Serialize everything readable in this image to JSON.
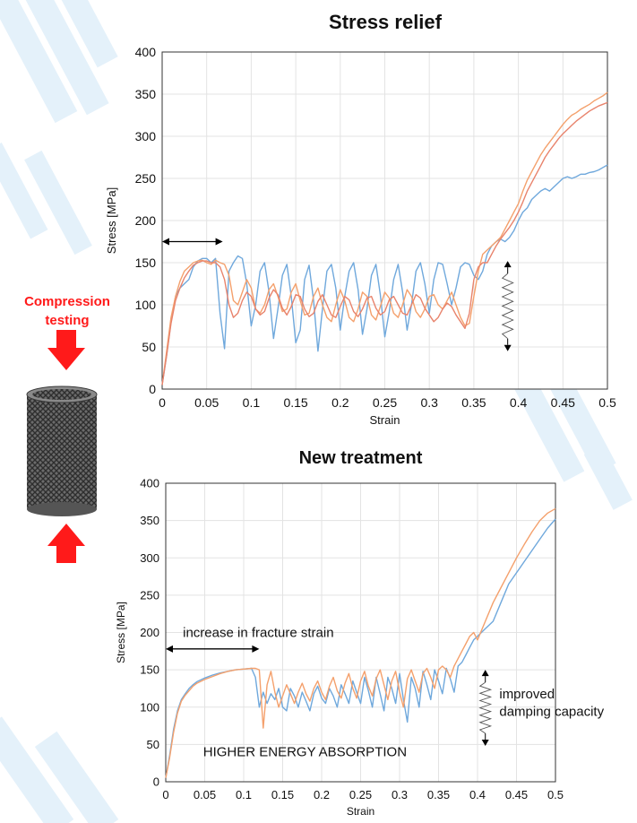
{
  "side_panel": {
    "label_line1": "Compression",
    "label_line2": "testing",
    "arrow_color": "#ff1a1a"
  },
  "chart_data": [
    {
      "type": "line",
      "title": "Stress relief",
      "xlabel": "Strain",
      "ylabel": "Stress [MPa]",
      "xlim": [
        0,
        0.5
      ],
      "ylim": [
        0,
        400
      ],
      "xticks": [
        0,
        0.05,
        0.1,
        0.15,
        0.2,
        0.25,
        0.3,
        0.35,
        0.4,
        0.45,
        0.5
      ],
      "yticks": [
        0,
        50,
        100,
        150,
        200,
        250,
        300,
        350,
        400
      ],
      "grid": true,
      "series": [
        {
          "color": "#6fa8dc",
          "x": [
            0,
            0.005,
            0.01,
            0.015,
            0.02,
            0.025,
            0.03,
            0.035,
            0.04,
            0.045,
            0.05,
            0.055,
            0.06,
            0.065,
            0.07,
            0.075,
            0.08,
            0.085,
            0.09,
            0.095,
            0.1,
            0.105,
            0.11,
            0.115,
            0.12,
            0.125,
            0.13,
            0.135,
            0.14,
            0.145,
            0.15,
            0.155,
            0.16,
            0.165,
            0.17,
            0.175,
            0.18,
            0.185,
            0.19,
            0.195,
            0.2,
            0.205,
            0.21,
            0.215,
            0.22,
            0.225,
            0.23,
            0.235,
            0.24,
            0.245,
            0.25,
            0.255,
            0.26,
            0.265,
            0.27,
            0.275,
            0.28,
            0.285,
            0.29,
            0.295,
            0.3,
            0.305,
            0.31,
            0.315,
            0.32,
            0.325,
            0.33,
            0.335,
            0.34,
            0.345,
            0.35,
            0.355,
            0.36,
            0.365,
            0.37,
            0.375,
            0.38,
            0.385,
            0.39,
            0.395,
            0.4,
            0.405,
            0.41,
            0.415,
            0.42,
            0.425,
            0.43,
            0.435,
            0.44,
            0.445,
            0.45,
            0.455,
            0.46,
            0.465,
            0.47,
            0.475,
            0.48,
            0.485,
            0.49,
            0.495,
            0.5
          ],
          "y": [
            5,
            40,
            80,
            110,
            120,
            125,
            130,
            145,
            152,
            155,
            155,
            150,
            155,
            90,
            48,
            140,
            150,
            158,
            155,
            125,
            75,
            100,
            140,
            150,
            115,
            60,
            95,
            135,
            148,
            110,
            55,
            70,
            130,
            147,
            105,
            45,
            95,
            140,
            148,
            120,
            70,
            110,
            140,
            150,
            118,
            65,
            95,
            135,
            148,
            112,
            62,
            92,
            130,
            148,
            115,
            70,
            100,
            140,
            150,
            125,
            90,
            130,
            150,
            148,
            125,
            100,
            120,
            145,
            150,
            148,
            135,
            130,
            140,
            160,
            170,
            175,
            178,
            175,
            180,
            188,
            200,
            210,
            215,
            225,
            230,
            235,
            238,
            235,
            240,
            245,
            250,
            252,
            250,
            252,
            255,
            255,
            257,
            258,
            260,
            263,
            266
          ]
        },
        {
          "color": "#f4a06c",
          "x": [
            0,
            0.005,
            0.01,
            0.015,
            0.02,
            0.025,
            0.03,
            0.035,
            0.04,
            0.045,
            0.05,
            0.055,
            0.06,
            0.065,
            0.07,
            0.075,
            0.08,
            0.085,
            0.09,
            0.095,
            0.1,
            0.105,
            0.11,
            0.115,
            0.12,
            0.125,
            0.13,
            0.135,
            0.14,
            0.145,
            0.15,
            0.155,
            0.16,
            0.165,
            0.17,
            0.175,
            0.18,
            0.185,
            0.19,
            0.195,
            0.2,
            0.205,
            0.21,
            0.215,
            0.22,
            0.225,
            0.23,
            0.235,
            0.24,
            0.245,
            0.25,
            0.255,
            0.26,
            0.265,
            0.27,
            0.275,
            0.28,
            0.285,
            0.29,
            0.295,
            0.3,
            0.305,
            0.31,
            0.315,
            0.32,
            0.325,
            0.33,
            0.335,
            0.34,
            0.345,
            0.35,
            0.355,
            0.36,
            0.365,
            0.37,
            0.375,
            0.38,
            0.385,
            0.39,
            0.395,
            0.4,
            0.405,
            0.41,
            0.415,
            0.42,
            0.425,
            0.43,
            0.435,
            0.44,
            0.445,
            0.45,
            0.455,
            0.46,
            0.465,
            0.47,
            0.475,
            0.48,
            0.485,
            0.49,
            0.495,
            0.5
          ],
          "y": [
            5,
            45,
            85,
            110,
            128,
            140,
            145,
            150,
            152,
            153,
            150,
            148,
            153,
            150,
            148,
            135,
            105,
            100,
            115,
            130,
            120,
            95,
            90,
            100,
            118,
            125,
            110,
            92,
            95,
            115,
            125,
            105,
            88,
            90,
            110,
            120,
            100,
            85,
            80,
            100,
            118,
            105,
            85,
            80,
            95,
            115,
            110,
            88,
            82,
            98,
            115,
            108,
            90,
            85,
            100,
            118,
            110,
            92,
            85,
            95,
            110,
            112,
            100,
            95,
            105,
            115,
            100,
            85,
            75,
            78,
            110,
            140,
            160,
            165,
            170,
            175,
            180,
            190,
            200,
            210,
            220,
            235,
            248,
            258,
            268,
            278,
            286,
            293,
            300,
            307,
            314,
            320,
            325,
            328,
            332,
            335,
            338,
            342,
            345,
            348,
            352
          ]
        },
        {
          "color": "#e8836c",
          "x": [
            0,
            0.005,
            0.01,
            0.015,
            0.02,
            0.025,
            0.03,
            0.035,
            0.04,
            0.045,
            0.05,
            0.055,
            0.06,
            0.065,
            0.07,
            0.075,
            0.08,
            0.085,
            0.09,
            0.095,
            0.1,
            0.105,
            0.11,
            0.115,
            0.12,
            0.125,
            0.13,
            0.135,
            0.14,
            0.145,
            0.15,
            0.155,
            0.16,
            0.165,
            0.17,
            0.175,
            0.18,
            0.185,
            0.19,
            0.195,
            0.2,
            0.205,
            0.21,
            0.215,
            0.22,
            0.225,
            0.23,
            0.235,
            0.24,
            0.245,
            0.25,
            0.255,
            0.26,
            0.265,
            0.27,
            0.275,
            0.28,
            0.285,
            0.29,
            0.295,
            0.3,
            0.305,
            0.31,
            0.315,
            0.32,
            0.325,
            0.33,
            0.335,
            0.34,
            0.345,
            0.35,
            0.355,
            0.36,
            0.365,
            0.37,
            0.375,
            0.38,
            0.385,
            0.39,
            0.395,
            0.4,
            0.405,
            0.41,
            0.415,
            0.42,
            0.425,
            0.43,
            0.435,
            0.44,
            0.445,
            0.45,
            0.455,
            0.46,
            0.465,
            0.47,
            0.475,
            0.48,
            0.485,
            0.49,
            0.495,
            0.5
          ],
          "y": [
            5,
            40,
            78,
            105,
            120,
            132,
            140,
            147,
            150,
            152,
            152,
            150,
            150,
            145,
            130,
            100,
            85,
            90,
            105,
            115,
            110,
            95,
            88,
            92,
            108,
            118,
            112,
            96,
            88,
            98,
            112,
            110,
            95,
            86,
            90,
            104,
            112,
            100,
            88,
            85,
            98,
            110,
            106,
            92,
            86,
            95,
            108,
            110,
            96,
            88,
            92,
            106,
            110,
            100,
            90,
            88,
            100,
            112,
            108,
            96,
            88,
            80,
            85,
            95,
            102,
            98,
            88,
            80,
            72,
            90,
            130,
            145,
            150,
            150,
            160,
            170,
            178,
            185,
            192,
            200,
            210,
            222,
            235,
            245,
            255,
            265,
            275,
            283,
            290,
            297,
            303,
            308,
            313,
            318,
            322,
            326,
            330,
            333,
            336,
            338,
            340
          ]
        }
      ],
      "annotations": [
        "double-arrow",
        "spring-arrow"
      ]
    },
    {
      "type": "line",
      "title": "New treatment",
      "xlabel": "Strain",
      "ylabel": "Stress [MPa]",
      "xlim": [
        0,
        0.5
      ],
      "ylim": [
        0,
        400
      ],
      "xticks": [
        0,
        0.05,
        0.1,
        0.15,
        0.2,
        0.25,
        0.3,
        0.35,
        0.4,
        0.45,
        0.5
      ],
      "yticks": [
        0,
        50,
        100,
        150,
        200,
        250,
        300,
        350,
        400
      ],
      "grid": true,
      "series": [
        {
          "color": "#6fa8dc",
          "x": [
            0,
            0.005,
            0.01,
            0.015,
            0.02,
            0.025,
            0.03,
            0.035,
            0.04,
            0.05,
            0.06,
            0.07,
            0.08,
            0.09,
            0.1,
            0.11,
            0.115,
            0.12,
            0.125,
            0.13,
            0.135,
            0.14,
            0.145,
            0.15,
            0.155,
            0.16,
            0.165,
            0.17,
            0.175,
            0.18,
            0.185,
            0.19,
            0.195,
            0.2,
            0.205,
            0.21,
            0.215,
            0.22,
            0.225,
            0.23,
            0.235,
            0.24,
            0.245,
            0.25,
            0.255,
            0.26,
            0.265,
            0.27,
            0.275,
            0.28,
            0.285,
            0.29,
            0.295,
            0.3,
            0.305,
            0.31,
            0.315,
            0.32,
            0.325,
            0.33,
            0.335,
            0.34,
            0.345,
            0.35,
            0.355,
            0.36,
            0.365,
            0.37,
            0.375,
            0.38,
            0.385,
            0.39,
            0.395,
            0.4,
            0.41,
            0.42,
            0.43,
            0.44,
            0.45,
            0.46,
            0.47,
            0.48,
            0.49,
            0.5
          ],
          "y": [
            5,
            35,
            70,
            95,
            110,
            118,
            125,
            130,
            134,
            139,
            143,
            146,
            148,
            150,
            151,
            152,
            140,
            100,
            120,
            105,
            118,
            110,
            125,
            100,
            95,
            125,
            115,
            100,
            120,
            108,
            95,
            118,
            128,
            112,
            105,
            125,
            115,
            100,
            130,
            118,
            105,
            135,
            120,
            105,
            140,
            122,
            100,
            140,
            118,
            95,
            140,
            125,
            105,
            145,
            110,
            80,
            140,
            125,
            100,
            148,
            130,
            110,
            150,
            135,
            118,
            152,
            138,
            120,
            155,
            160,
            170,
            180,
            190,
            195,
            205,
            215,
            240,
            265,
            280,
            295,
            310,
            325,
            340,
            352
          ]
        },
        {
          "color": "#f4a06c",
          "x": [
            0,
            0.005,
            0.01,
            0.015,
            0.02,
            0.025,
            0.03,
            0.035,
            0.04,
            0.05,
            0.06,
            0.07,
            0.08,
            0.09,
            0.1,
            0.11,
            0.115,
            0.12,
            0.125,
            0.13,
            0.135,
            0.14,
            0.145,
            0.15,
            0.155,
            0.16,
            0.165,
            0.17,
            0.175,
            0.18,
            0.185,
            0.19,
            0.195,
            0.2,
            0.205,
            0.21,
            0.215,
            0.22,
            0.225,
            0.23,
            0.235,
            0.24,
            0.245,
            0.25,
            0.255,
            0.26,
            0.265,
            0.27,
            0.275,
            0.28,
            0.285,
            0.29,
            0.295,
            0.3,
            0.305,
            0.31,
            0.315,
            0.32,
            0.325,
            0.33,
            0.335,
            0.34,
            0.345,
            0.35,
            0.355,
            0.36,
            0.365,
            0.37,
            0.375,
            0.38,
            0.385,
            0.39,
            0.395,
            0.4,
            0.41,
            0.42,
            0.43,
            0.44,
            0.45,
            0.46,
            0.47,
            0.48,
            0.49,
            0.5
          ],
          "y": [
            5,
            32,
            66,
            92,
            108,
            116,
            122,
            128,
            132,
            137,
            141,
            145,
            148,
            150,
            151,
            152,
            152,
            150,
            72,
            130,
            148,
            120,
            100,
            115,
            130,
            118,
            105,
            120,
            132,
            118,
            108,
            125,
            135,
            120,
            110,
            128,
            140,
            122,
            112,
            132,
            145,
            125,
            112,
            135,
            148,
            128,
            115,
            138,
            150,
            130,
            110,
            135,
            148,
            120,
            100,
            138,
            150,
            135,
            120,
            145,
            152,
            140,
            125,
            150,
            155,
            150,
            140,
            155,
            165,
            175,
            185,
            195,
            200,
            190,
            215,
            240,
            260,
            280,
            300,
            318,
            335,
            350,
            360,
            366
          ]
        }
      ],
      "annotations": {
        "fracture_label": "increase in fracture strain",
        "energy_label": "HIGHER ENERGY ABSORPTION",
        "damping_line1": "improved",
        "damping_line2": "damping capacity"
      }
    }
  ]
}
